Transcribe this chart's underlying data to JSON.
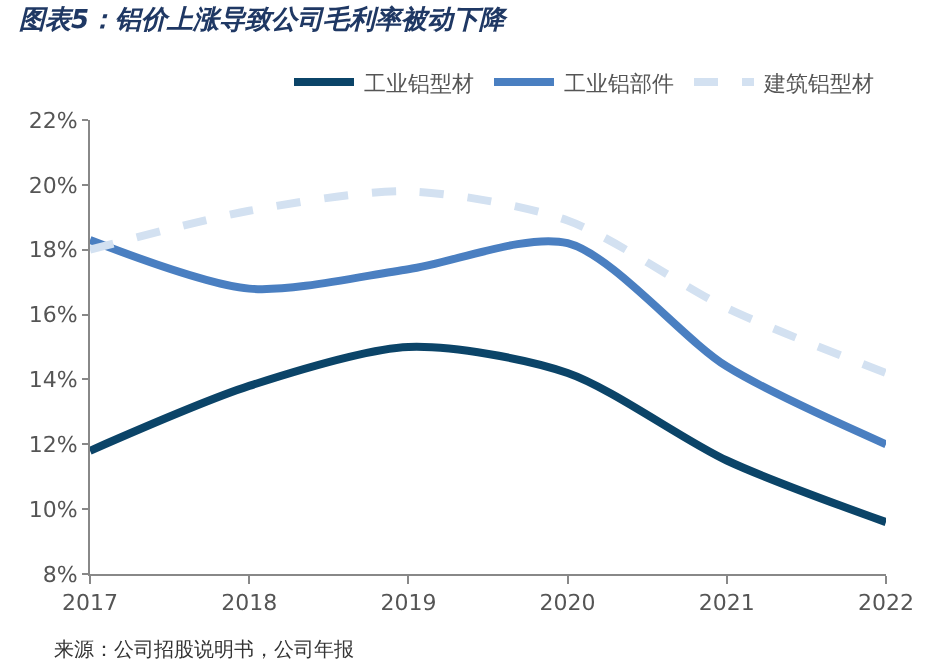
{
  "chart_data": {
    "type": "line",
    "title": "图表5：铝价上涨导致公司毛利率被动下降",
    "x": [
      2017,
      2018,
      2019,
      2020,
      2021,
      2022
    ],
    "series": [
      {
        "name": "工业铝型材",
        "color": "#0b4468",
        "values": [
          11.8,
          13.8,
          15.0,
          14.2,
          11.5,
          9.6
        ],
        "line_style": "solid"
      },
      {
        "name": "工业铝部件",
        "color": "#4a7fc1",
        "values": [
          18.3,
          16.8,
          17.4,
          18.2,
          14.4,
          12.0
        ],
        "line_style": "solid"
      },
      {
        "name": "建筑铝型材",
        "color": "#d3e1f1",
        "values": [
          18.0,
          19.2,
          19.8,
          18.9,
          16.2,
          14.2
        ],
        "line_style": "dashed"
      }
    ],
    "xlim": [
      2017,
      2022
    ],
    "xticks": [
      2017,
      2018,
      2019,
      2020,
      2021,
      2022
    ],
    "ylim": [
      8,
      22
    ],
    "yticks": [
      {
        "value": 8,
        "label": "8%"
      },
      {
        "value": 10,
        "label": "10%"
      },
      {
        "value": 12,
        "label": "12%"
      },
      {
        "value": 14,
        "label": "14%"
      },
      {
        "value": 16,
        "label": "16%"
      },
      {
        "value": 18,
        "label": "18%"
      },
      {
        "value": 20,
        "label": "20%"
      },
      {
        "value": 22,
        "label": "22%"
      }
    ],
    "legend": "top right",
    "marker": "none",
    "annotations": [
      "来源：公司招股说明书，公司年报"
    ]
  }
}
